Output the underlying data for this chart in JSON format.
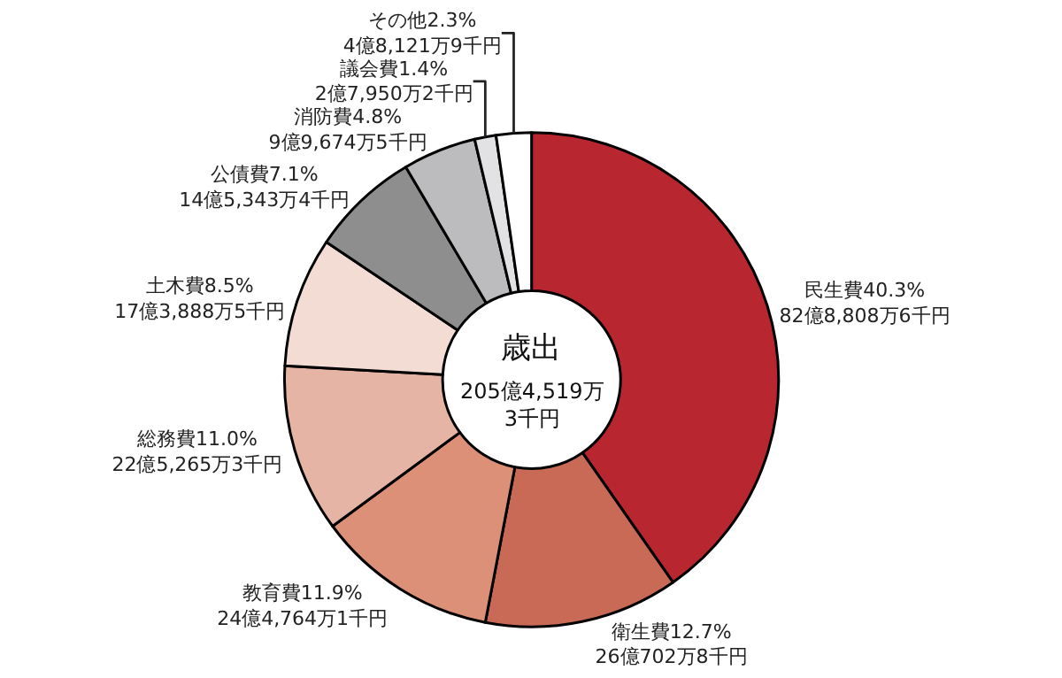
{
  "chart_data": {
    "type": "donut",
    "title": "歳出",
    "categories": [
      "民生費",
      "衛生費",
      "教育費",
      "総務費",
      "土木費",
      "公債費",
      "消防費",
      "議会費",
      "その他"
    ],
    "values": [
      40.3,
      12.7,
      11.9,
      11.0,
      8.5,
      7.1,
      4.8,
      1.4,
      2.3
    ],
    "value_labels": [
      "40.3%\n82億8,808万6千円",
      "12.7%\n26億702万8千円",
      "11.9%\n24億4,764万1千円",
      "11.0%\n22億5,265万3千円",
      "8.5%\n17億3,888万5千円",
      "7.1%\n14億5,343万4千円",
      "4.8%\n9億9,674万5千円",
      "1.4%\n2億7,950万2千円",
      "2.3%\n4億8,121万9千円"
    ],
    "colors": [
      "#b8262f",
      "#c96a56",
      "#dc9078",
      "#e6b4a4",
      "#f3dcd4",
      "#8e8e8e",
      "#bcbcbe",
      "#e2e2e4",
      "#ffffff"
    ],
    "annotations": [
      "205億4,519万\n3千円"
    ]
  }
}
